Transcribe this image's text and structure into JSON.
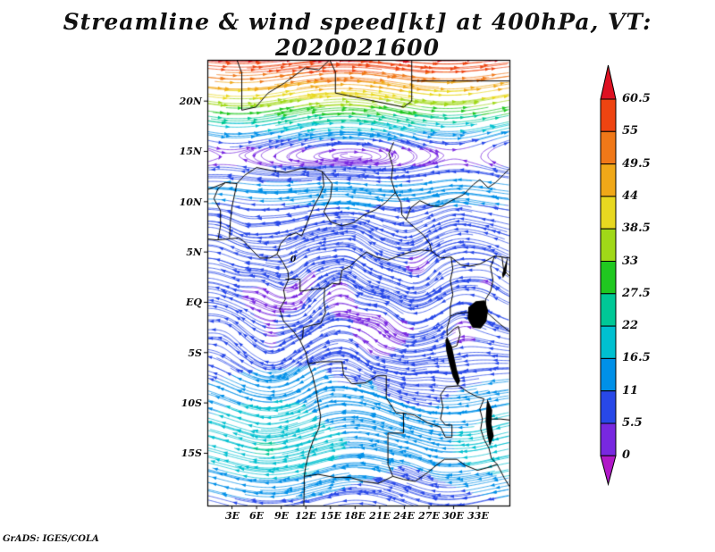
{
  "title": "Streamline & wind speed[kt] at 400hPa, VT: 2020021600",
  "credit": "GrADS: IGES/COLA",
  "chart_data": {
    "type": "streamline",
    "title": "Streamline & wind speed[kt] at 400hPa, VT: 2020021600",
    "variable": "wind speed",
    "units": "kt",
    "level": "400hPa",
    "valid_time": "2020021600",
    "lon_ticks": [
      "3E",
      "6E",
      "9E",
      "12E",
      "15E",
      "18E",
      "21E",
      "24E",
      "27E",
      "30E",
      "33E"
    ],
    "lat_ticks": [
      "20N",
      "15N",
      "10N",
      "5N",
      "EQ",
      "5S",
      "10S",
      "15S"
    ],
    "axis_ranges": {
      "lon_deg_east": [
        0,
        36.8
      ],
      "lat_deg": [
        -20.2,
        24.1
      ]
    },
    "colorbar": {
      "orientation": "vertical-right",
      "labels": [
        "60.5",
        "55",
        "49.5",
        "44",
        "38.5",
        "33",
        "27.5",
        "22",
        "16.5",
        "11",
        "5.5",
        "0"
      ],
      "colors_top_to_bottom": [
        "#dd1122",
        "#ee4411",
        "#f07818",
        "#f0a818",
        "#e8d820",
        "#a0d818",
        "#20c820",
        "#00c896",
        "#00c0d0",
        "#0090e8",
        "#2848e8",
        "#7828e0",
        "#b018c8"
      ]
    },
    "annotations": [
      {
        "text": "0"
      }
    ]
  }
}
